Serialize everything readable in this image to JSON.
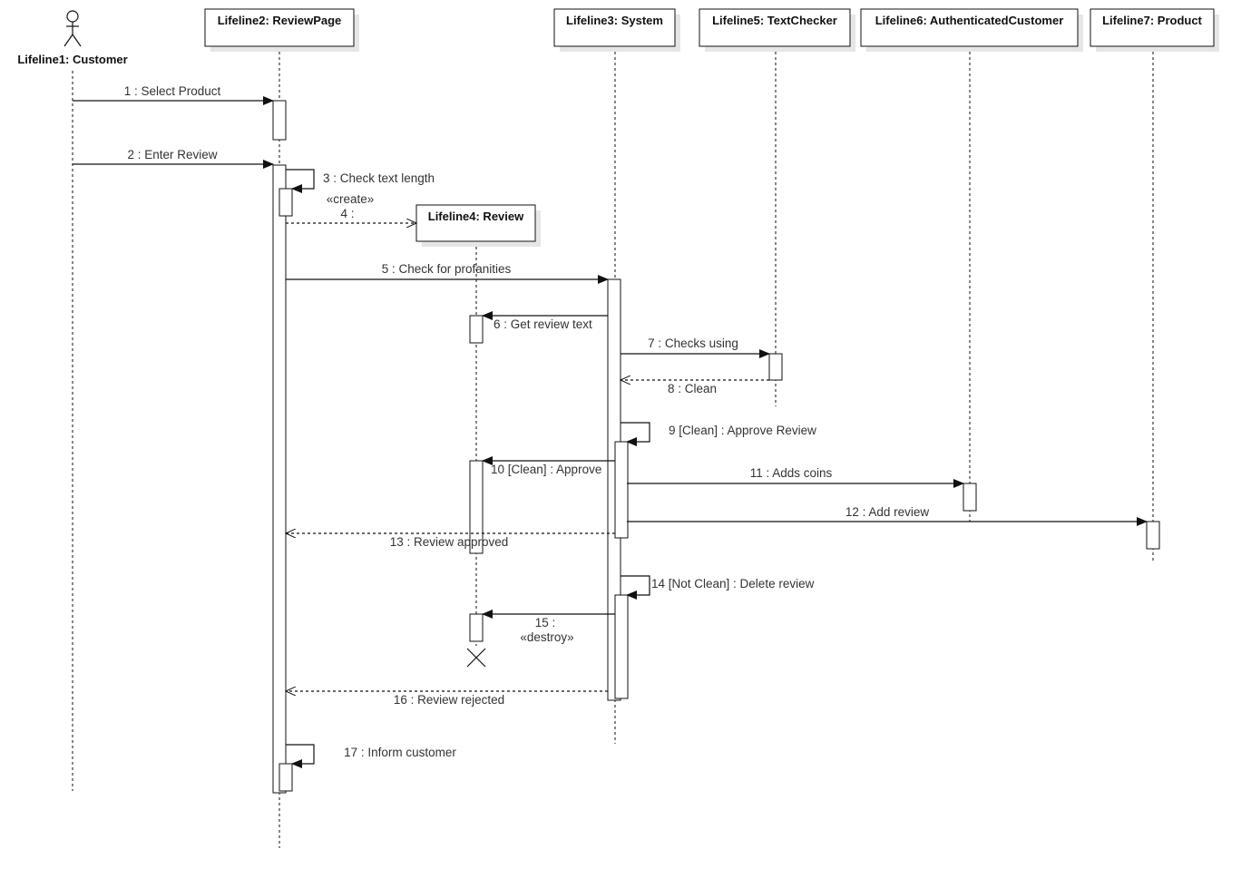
{
  "lifelines": [
    {
      "id": "L1",
      "name": "Lifeline1: Customer",
      "kind": "actor"
    },
    {
      "id": "L2",
      "name": "Lifeline2: ReviewPage",
      "kind": "object"
    },
    {
      "id": "L3",
      "name": "Lifeline3: System",
      "kind": "object"
    },
    {
      "id": "L4",
      "name": "Lifeline4: Review",
      "kind": "object"
    },
    {
      "id": "L5",
      "name": "Lifeline5: TextChecker",
      "kind": "object"
    },
    {
      "id": "L6",
      "name": "Lifeline6: AuthenticatedCustomer",
      "kind": "object"
    },
    {
      "id": "L7",
      "name": "Lifeline7: Product",
      "kind": "object"
    }
  ],
  "messages": [
    {
      "label": "1 : Select Product",
      "from": "L1",
      "to": "L2",
      "type": "sync"
    },
    {
      "label": "2 : Enter Review",
      "from": "L1",
      "to": "L2",
      "type": "sync"
    },
    {
      "label": "3 : Check text length",
      "from": "L2",
      "to": "L2",
      "type": "self"
    },
    {
      "label": "4 :",
      "stereotype": "«create»",
      "from": "L2",
      "to": "L4",
      "type": "create"
    },
    {
      "label": "5 : Check for profanities",
      "from": "L2",
      "to": "L3",
      "type": "sync"
    },
    {
      "label": "6 : Get review text",
      "from": "L3",
      "to": "L4",
      "type": "sync"
    },
    {
      "label": "7 : Checks using",
      "from": "L3",
      "to": "L5",
      "type": "sync"
    },
    {
      "label": "8 : Clean",
      "from": "L5",
      "to": "L3",
      "type": "reply"
    },
    {
      "label": "9 [Clean] : Approve Review",
      "from": "L3",
      "to": "L3",
      "type": "self"
    },
    {
      "label": "10 [Clean] : Approve",
      "from": "L3",
      "to": "L4",
      "type": "sync"
    },
    {
      "label": "11 : Adds coins",
      "from": "L3",
      "to": "L6",
      "type": "sync"
    },
    {
      "label": "12 : Add review",
      "from": "L3",
      "to": "L7",
      "type": "sync"
    },
    {
      "label": "13 : Review approved",
      "from": "L3",
      "to": "L2",
      "type": "reply"
    },
    {
      "label": "14 [Not Clean] : Delete review",
      "from": "L3",
      "to": "L3",
      "type": "self"
    },
    {
      "label": "15 :",
      "stereotype": "«destroy»",
      "from": "L3",
      "to": "L4",
      "type": "destroy"
    },
    {
      "label": "16 : Review rejected",
      "from": "L3",
      "to": "L2",
      "type": "reply"
    },
    {
      "label": "17 : Inform customer",
      "from": "L2",
      "to": "L2",
      "type": "self"
    }
  ],
  "colors": {
    "line": "#111111",
    "text": "#333333",
    "shadow": "#e6e6e6"
  }
}
